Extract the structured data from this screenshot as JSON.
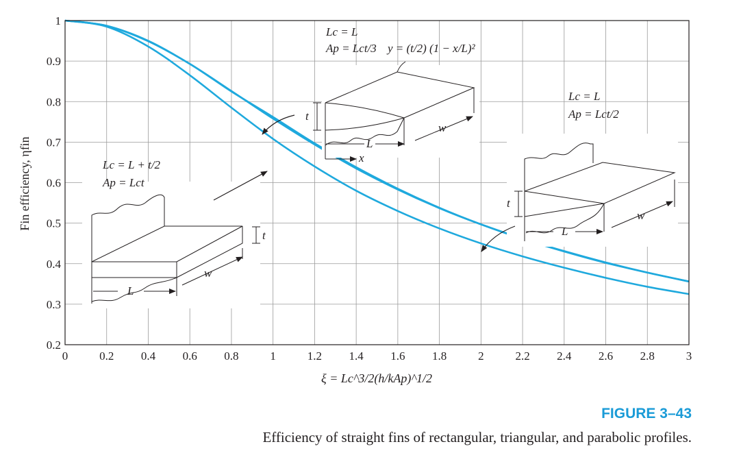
{
  "chart_data": {
    "type": "line",
    "xlabel": "ξ = Lc^3/2(h/kAp)^1/2",
    "ylabel": "Fin efficiency, ηfin",
    "xlim": [
      0,
      3
    ],
    "ylim": [
      0.2,
      1.0
    ],
    "grid": true,
    "x_ticks": [
      "0",
      "0.2",
      "0.4",
      "0.6",
      "0.8",
      "1",
      "1.2",
      "1.4",
      "1.6",
      "1.8",
      "2",
      "2.2",
      "2.4",
      "2.6",
      "2.8",
      "3"
    ],
    "y_ticks": [
      "0.2",
      "0.3",
      "0.4",
      "0.5",
      "0.6",
      "0.7",
      "0.8",
      "0.9",
      "1"
    ],
    "color": "#1fa9dd",
    "x": [
      0,
      0.2,
      0.4,
      0.6,
      0.8,
      1.0,
      1.2,
      1.4,
      1.6,
      1.8,
      2.0,
      2.2,
      2.4,
      2.6,
      2.8,
      3.0
    ],
    "series": [
      {
        "values": [
          1.0,
          0.987,
          0.949,
          0.893,
          0.826,
          0.758,
          0.694,
          0.635,
          0.583,
          0.537,
          0.497,
          0.462,
          0.431,
          0.403,
          0.378,
          0.356
        ]
      },
      {
        "values": [
          1.0,
          0.985,
          0.936,
          0.865,
          0.785,
          0.708,
          0.64,
          0.58,
          0.53,
          0.487,
          0.45,
          0.418,
          0.39,
          0.365,
          0.343,
          0.325
        ]
      },
      {
        "values": [
          1.0,
          0.987,
          0.95,
          0.893,
          0.825,
          0.762,
          0.697,
          0.638,
          0.585,
          0.538,
          0.497,
          0.461,
          0.43,
          0.402,
          0.378,
          0.356
        ]
      }
    ],
    "annotations": {
      "parabolic": {
        "lc": "Lc = L",
        "ap": "Ap = Lct/3",
        "eq": "y = (t/2) (1 − x/L)²"
      },
      "triangular": {
        "lc": "Lc = L",
        "ap": "Ap = Lct/2"
      },
      "rectangular": {
        "lc": "Lc = L + t/2",
        "ap": "Ap = Lct"
      },
      "dim_t": "t",
      "dim_L": "L",
      "dim_w": "w",
      "dim_x": "x"
    }
  },
  "figure": {
    "number": "FIGURE 3–43",
    "caption": "Efficiency of straight fins of rectangular, triangular, and parabolic profiles."
  }
}
